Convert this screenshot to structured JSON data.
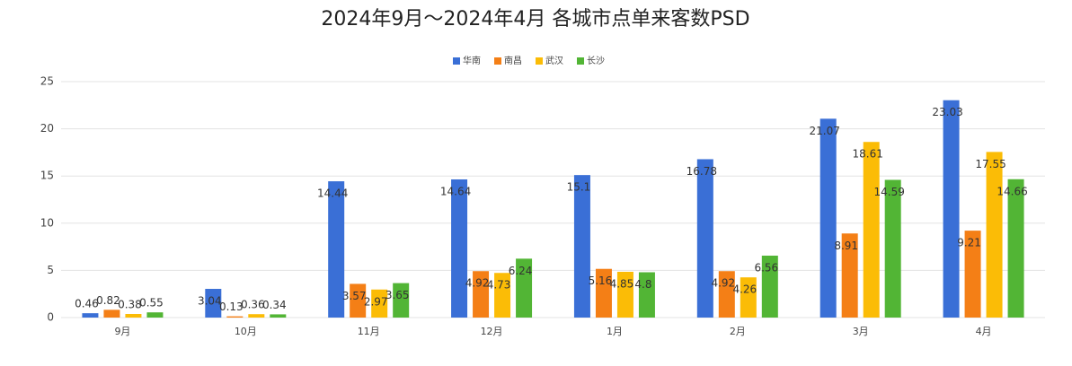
{
  "chart_data": {
    "type": "bar",
    "title": "2024年9月～2024年4月 各城市点单来客数PSD",
    "categories": [
      "9月",
      "10月",
      "11月",
      "12月",
      "1月",
      "2月",
      "3月",
      "4月"
    ],
    "series": [
      {
        "name": "华南",
        "color": "#3a6fd6",
        "values": [
          0.46,
          3.04,
          14.44,
          14.64,
          15.1,
          16.78,
          21.07,
          23.03
        ]
      },
      {
        "name": "南昌",
        "color": "#f47f16",
        "values": [
          0.82,
          0.13,
          3.57,
          4.92,
          5.16,
          4.92,
          8.91,
          9.21
        ]
      },
      {
        "name": "武汉",
        "color": "#fbbc06",
        "values": [
          0.38,
          0.36,
          2.97,
          4.73,
          4.85,
          4.26,
          18.61,
          17.55
        ]
      },
      {
        "name": "长沙",
        "color": "#52b535",
        "values": [
          0.55,
          0.34,
          3.65,
          6.24,
          4.8,
          6.56,
          14.59,
          14.66
        ]
      }
    ],
    "ylim": [
      0,
      25
    ],
    "yticks": [
      0,
      5,
      10,
      15,
      20,
      25
    ],
    "grid": true,
    "legend": "top"
  }
}
